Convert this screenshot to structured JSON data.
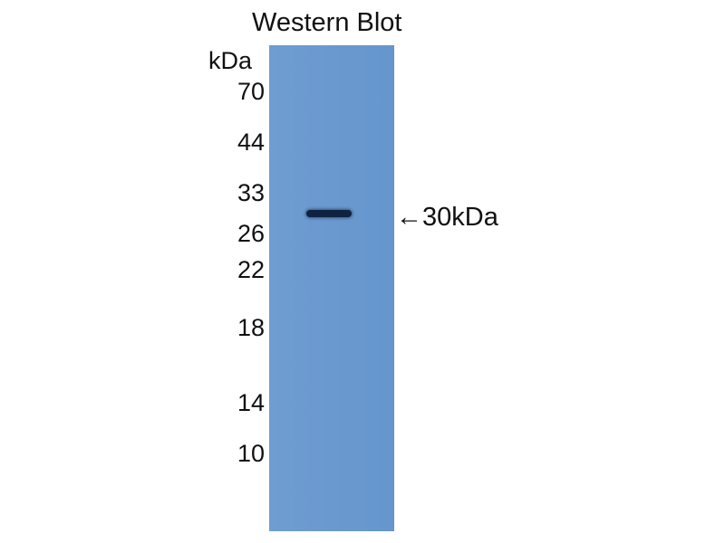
{
  "title": "Western Blot",
  "unit_label": "kDa",
  "markers": [
    "70",
    "44",
    "33",
    "26",
    "22",
    "18",
    "14",
    "10"
  ],
  "band_label": "←30kDa",
  "colors": {
    "membrane": "#6a99cf",
    "band": "#0f2340"
  }
}
